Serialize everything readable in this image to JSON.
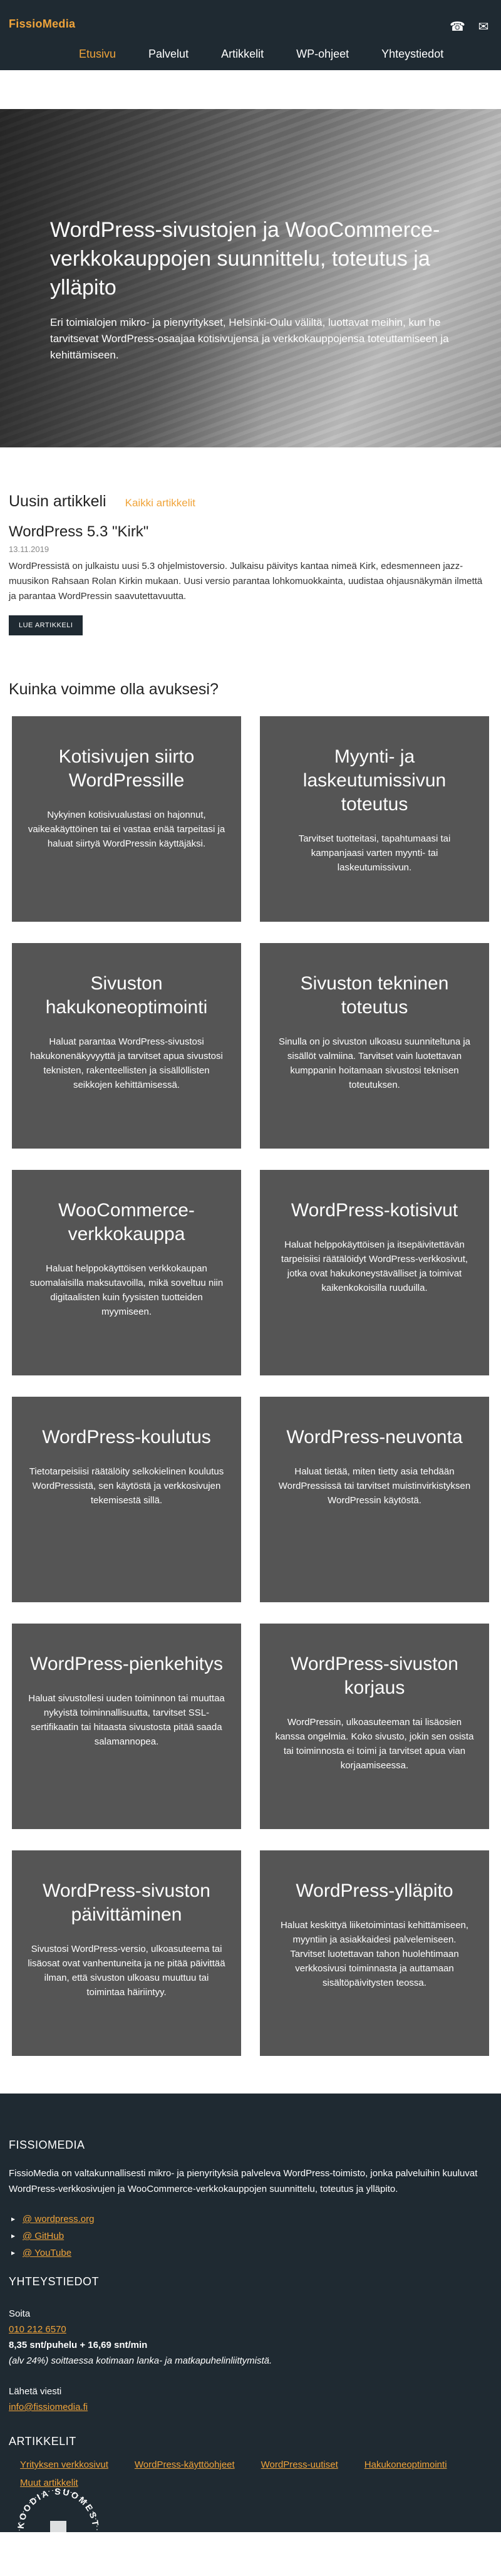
{
  "header": {
    "brand": "FissioMedia",
    "nav": [
      "Etusivu",
      "Palvelut",
      "Artikkelit",
      "WP-ohjeet",
      "Yhteystiedot"
    ],
    "icons": {
      "phone": "phone-icon",
      "mail": "envelope-icon"
    }
  },
  "hero": {
    "title": "WordPress-sivustojen ja WooCommerce-verkkokauppojen suunnittelu, toteutus ja ylläpito",
    "text": "Eri toimialojen mikro- ja pienyritykset, Helsinki-Oulu väliltä, luottavat meihin, kun he tarvitsevat WordPress-osaajaa kotisivujensa ja verkkokauppojensa toteuttamiseen ja kehittämiseen."
  },
  "articles": {
    "title": "Uusin artikkeli",
    "all_label": "Kaikki artikkelit",
    "post": {
      "title": "WordPress 5.3 \"Kirk\"",
      "date": "13.11.2019",
      "excerpt": "WordPressistä on julkaistu uusi 5.3 ohjelmistoversio. Julkaisu päivitys kantaa nimeä Kirk, edesmenneen jazz-muusikon Rahsaan Rolan Kirkin mukaan. Uusi versio parantaa lohkomuokkainta, uudistaa ohjausnäkymän ilmettä ja parantaa WordPressin saavutettavuutta.",
      "button": "LUE ARTIKKELI"
    }
  },
  "services": {
    "title": "Kuinka voimme olla avuksesi?",
    "items": [
      {
        "title": "Kotisivujen siirto WordPressille",
        "text": "Nykyinen kotisivualustasi on hajonnut, vaikeakäyttöinen tai ei vastaa enää tarpeitasi ja haluat siirtyä WordPressin käyttäjäksi."
      },
      {
        "title": "Myynti- ja laskeutumissivun toteutus",
        "text": "Tarvitset tuotteitasi, tapahtumaasi tai kampanjaasi varten myynti- tai laskeutumissivun."
      },
      {
        "title": "Sivuston hakukoneoptimointi",
        "text": "Haluat parantaa WordPress-sivustosi hakukonenäkyvyyttä ja tarvitset apua sivustosi teknisten, rakenteellisten ja sisällöllisten seikkojen kehittämisessä."
      },
      {
        "title": "Sivuston tekninen toteutus",
        "text": "Sinulla on jo sivuston ulkoasu suunniteltuna ja sisällöt valmiina. Tarvitset vain luotettavan kumppanin hoitamaan sivustosi teknisen toteutuksen."
      },
      {
        "title": "WooCommerce-verkkokauppa",
        "text": "Haluat helppokäyttöisen verkkokaupan suomalaisilla maksutavoilla, mikä soveltuu niin digitaalisten kuin fyysisten tuotteiden myymiseen."
      },
      {
        "title": "WordPress-kotisivut",
        "text": "Haluat helppokäyttöisen ja itsepäivitettävän tarpeisiisi räätälöidyt WordPress-verkkosivut, jotka ovat hakukoneystävälliset ja toimivat kaikenkokoisilla ruuduilla."
      },
      {
        "title": "WordPress-koulutus",
        "text": "Tietotarpeisiisi räätälöity selkokielinen koulutus WordPressistä, sen käytöstä ja verkkosivujen tekemisestä sillä."
      },
      {
        "title": "WordPress-neuvonta",
        "text": "Haluat tietää, miten tietty asia tehdään WordPressissä tai tarvitset muistinvirkistyksen WordPressin käytöstä."
      },
      {
        "title": "WordPress-pienkehitys",
        "text": "Haluat sivustollesi uuden toiminnon tai muuttaa nykyistä toiminnallisuutta, tarvitset SSL-sertifikaatin tai hitaasta sivustosta pitää saada salamannopea."
      },
      {
        "title": "WordPress-sivuston korjaus",
        "text": "WordPressin, ulkoasuteeman tai lisäosien kanssa ongelmia. Koko sivusto, jokin sen osista tai toiminnosta ei toimi ja tarvitset apua vian korjaamiseessa."
      },
      {
        "title": "WordPress-sivuston päivittäminen",
        "text": "Sivustosi WordPress-versio, ulkoasuteema tai lisäosat ovat vanhentuneita ja ne pitää päivittää ilman, että sivuston ulkoasu muuttuu tai toimintaa häiriintyy."
      },
      {
        "title": "WordPress-ylläpito",
        "text": "Haluat keskittyä liiketoimintasi kehittämiseen, myyntiin ja asiakkaidesi palvelemiseen. Tarvitset luotettavan tahon huolehtimaan verkkosivusi toiminnasta ja auttamaan sisältöpäivitysten teossa."
      }
    ]
  },
  "footer": {
    "brand_title": "FISSIOMEDIA",
    "about": "FissioMedia on valtakunnallisesti mikro- ja pienyrityksiä palveleva WordPress-toimisto, jonka palveluihin kuuluvat WordPress-verkkosivujen ja WooCommerce-verkkokauppojen suunnittelu, toteutus ja ylläpito.",
    "social": [
      "@ wordpress.org",
      "@ GitHub",
      "@ YouTube"
    ],
    "contact_title": "YHTEYSTIEDOT",
    "call_label": "Soita",
    "phone": "010 212 6570",
    "price": "8,35 snt/puhelu + 16,69 snt/min",
    "price_note": "(alv 24%) soittaessa kotimaan lanka- ja matkapuhelinliittymistä.",
    "email_label": "Lähetä viesti",
    "email": "info@fissiomedia.fi",
    "articles_title": "ARTIKKELIT",
    "article_links": [
      "Yrityksen verkkosivut",
      "WordPress-käyttöohjeet",
      "WordPress-uutiset",
      "Hakukoneoptimointi",
      "Muut artikkelit"
    ],
    "badge_text": "KOODIA SUOMESTA"
  }
}
